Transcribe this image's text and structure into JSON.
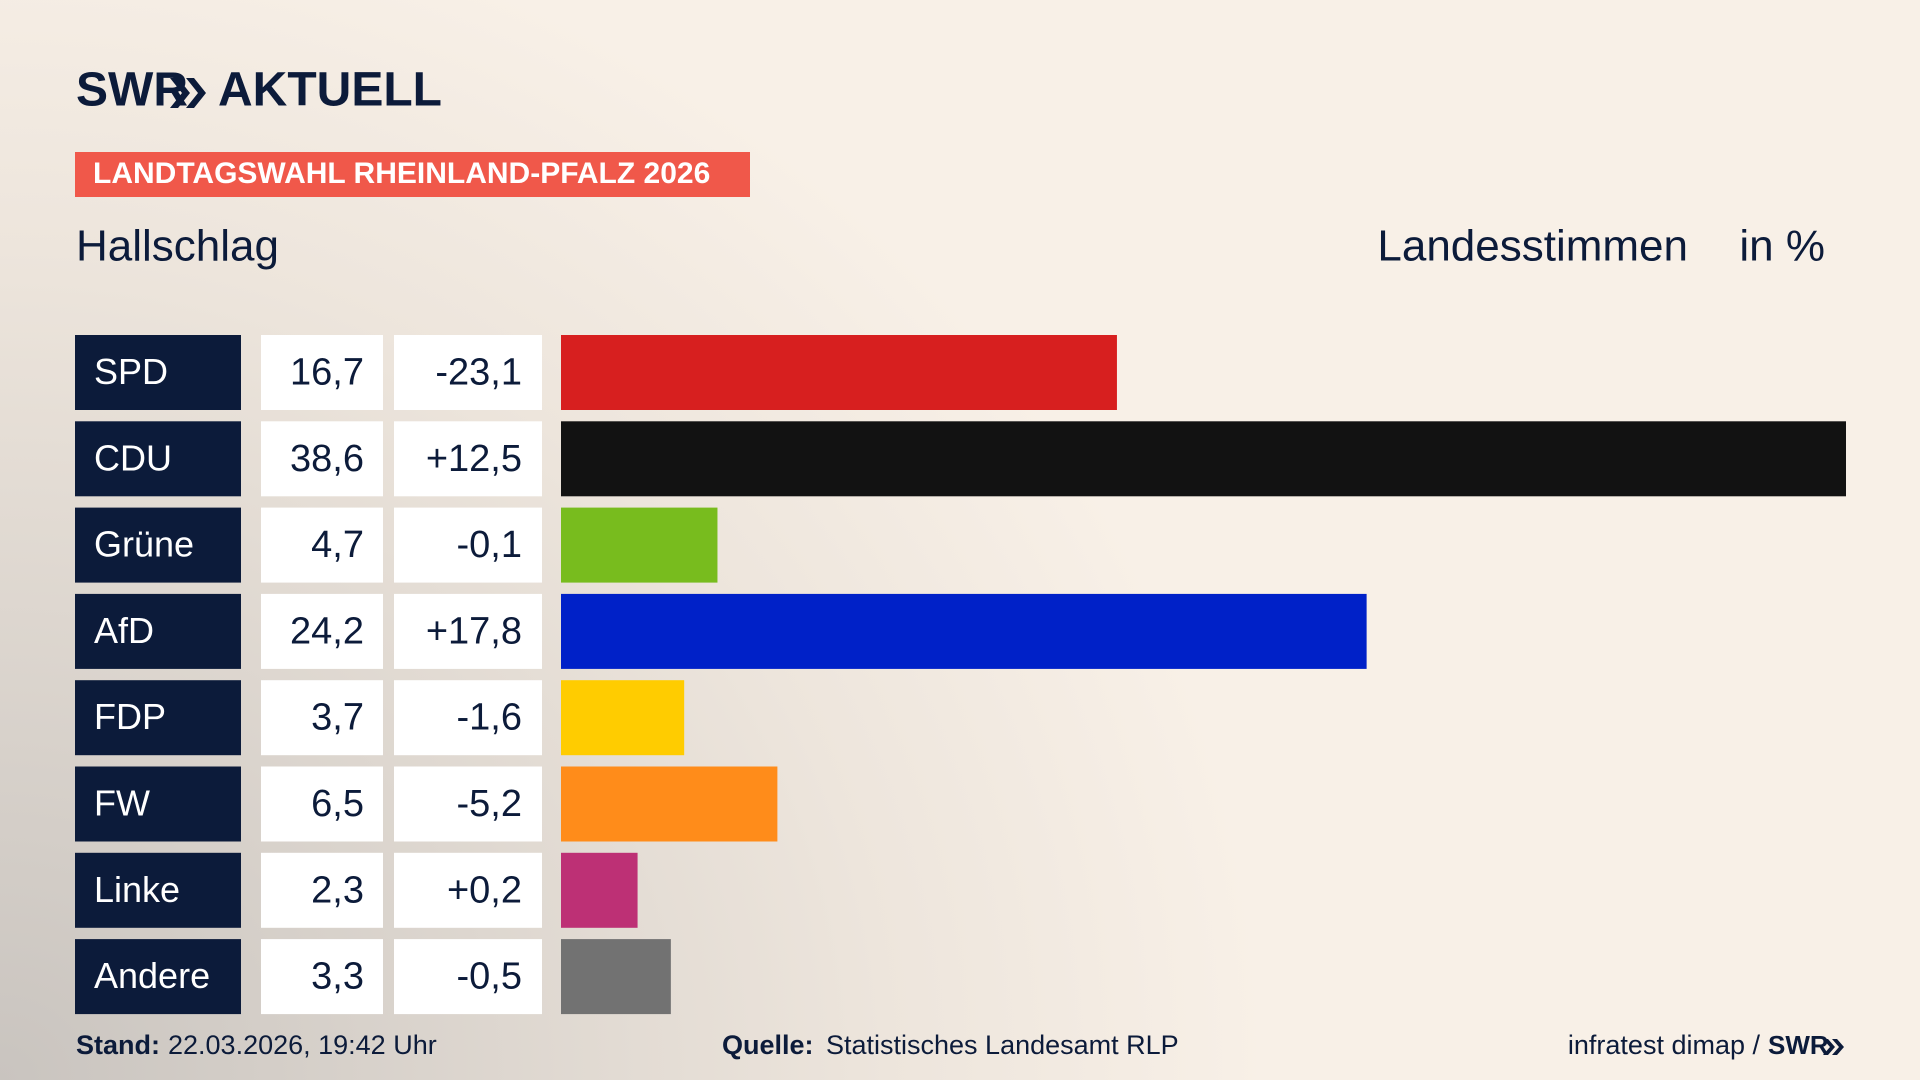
{
  "chart_data": {
    "type": "bar",
    "brand": "SWR",
    "brand_section": "AKTUELL",
    "banner": "LANDTAGSWAHL RHEINLAND-PFALZ 2026",
    "subtitle": "Hallschlag",
    "measure": "Landesstimmen",
    "unit": "in %",
    "categories": [
      "SPD",
      "CDU",
      "Grüne",
      "AfD",
      "FDP",
      "FW",
      "Linke",
      "Andere"
    ],
    "values": [
      16.7,
      38.6,
      4.7,
      24.2,
      3.7,
      6.5,
      2.3,
      3.3
    ],
    "value_labels": [
      "16,7",
      "38,6",
      "4,7",
      "24,2",
      "3,7",
      "6,5",
      "2,3",
      "3,3"
    ],
    "changes": [
      -23.1,
      12.5,
      -0.1,
      17.8,
      -1.6,
      -5.2,
      0.2,
      -0.5
    ],
    "change_labels": [
      "-23,1",
      "+12,5",
      "-0,1",
      "+17,8",
      "-1,6",
      "-5,2",
      "+0,2",
      "-0,5"
    ],
    "colors": [
      "#d71f1f",
      "#121212",
      "#78bc1e",
      "#0021c8",
      "#ffcc00",
      "#ff8c1a",
      "#bd3075",
      "#727272"
    ],
    "stand_label": "Stand:",
    "stand": "22.03.2026, 19:42 Uhr",
    "source_label": "Quelle:",
    "source": "Statistisches Landesamt RLP",
    "credit": "infratest dimap /",
    "credit_brand": "SWR"
  }
}
